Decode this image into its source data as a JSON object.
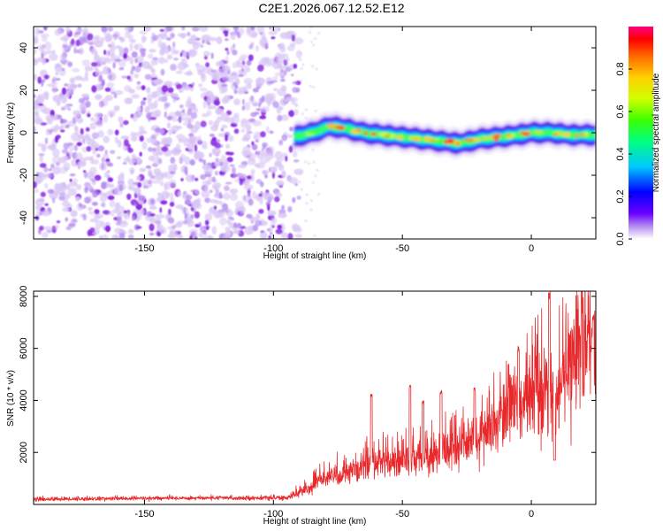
{
  "title": "C2E1.2026.067.12.52.E12",
  "colors": {
    "background": "#ffffff",
    "frame": "#000000",
    "snr_line": "#e8282a",
    "noise_dots": "#8a2be2",
    "noise_halo": "#d9c6f5"
  },
  "chart_data": [
    {
      "type": "heatmap",
      "name": "spectrogram",
      "xlabel": "Height of straight line (km)",
      "ylabel": "Frequency (Hz)",
      "xlim": [
        -193,
        25
      ],
      "ylim": [
        -50,
        50
      ],
      "xticks": [
        -150,
        -100,
        -50,
        0
      ],
      "yticks": [
        -40,
        -20,
        0,
        20,
        40
      ],
      "noise_region_x": [
        -193,
        -90
      ],
      "signal_region_x": [
        -92,
        25
      ],
      "signal_center_track": [
        {
          "x": -92,
          "y": -2
        },
        {
          "x": -85,
          "y": 0
        },
        {
          "x": -78,
          "y": 3
        },
        {
          "x": -72,
          "y": 2
        },
        {
          "x": -65,
          "y": 0
        },
        {
          "x": -58,
          "y": -1
        },
        {
          "x": -50,
          "y": -2
        },
        {
          "x": -42,
          "y": -3
        },
        {
          "x": -35,
          "y": -4
        },
        {
          "x": -28,
          "y": -5
        },
        {
          "x": -20,
          "y": -3
        },
        {
          "x": -12,
          "y": -2
        },
        {
          "x": -5,
          "y": -1
        },
        {
          "x": 0,
          "y": 0
        },
        {
          "x": 8,
          "y": 0
        },
        {
          "x": 15,
          "y": -1
        },
        {
          "x": 24,
          "y": -1
        }
      ],
      "colorbar": {
        "label": "Normalized spectral amplitude",
        "range": [
          0,
          1
        ],
        "ticks": [
          0.0,
          0.2,
          0.4,
          0.6,
          0.8
        ],
        "tick_labels": [
          "0.0",
          "0.2",
          "0.4",
          "0.6",
          "0.8"
        ]
      }
    },
    {
      "type": "line",
      "name": "snr",
      "xlabel": "Height of straight line (km)",
      "ylabel": "SNR (10 * v/v)",
      "xlim": [
        -193,
        25
      ],
      "ylim": [
        0,
        8200
      ],
      "xticks": [
        -150,
        -100,
        -50,
        0
      ],
      "yticks": [
        2000,
        4000,
        6000,
        8000
      ],
      "series": [
        {
          "name": "SNR",
          "trend": [
            {
              "x": -193,
              "y": 200
            },
            {
              "x": -130,
              "y": 250
            },
            {
              "x": -95,
              "y": 250
            },
            {
              "x": -88,
              "y": 550
            },
            {
              "x": -80,
              "y": 1000
            },
            {
              "x": -70,
              "y": 1300
            },
            {
              "x": -60,
              "y": 1600
            },
            {
              "x": -50,
              "y": 1700
            },
            {
              "x": -40,
              "y": 1900
            },
            {
              "x": -30,
              "y": 2100
            },
            {
              "x": -20,
              "y": 2600
            },
            {
              "x": -10,
              "y": 3700
            },
            {
              "x": 0,
              "y": 4200
            },
            {
              "x": 5,
              "y": 4400
            },
            {
              "x": 8,
              "y": 3800
            },
            {
              "x": 12,
              "y": 5000
            },
            {
              "x": 20,
              "y": 6000
            },
            {
              "x": 25,
              "y": 6500
            }
          ],
          "peaks": [
            {
              "x": -62,
              "y": 4300
            },
            {
              "x": -47,
              "y": 4600
            },
            {
              "x": -42,
              "y": 4000
            },
            {
              "x": -35,
              "y": 4400
            },
            {
              "x": -22,
              "y": 4500
            },
            {
              "x": -5,
              "y": 6100
            },
            {
              "x": 7,
              "y": 8200
            },
            {
              "x": 24,
              "y": 7300
            }
          ],
          "dips": [
            {
              "x": 9,
              "y": 1700
            }
          ]
        }
      ]
    }
  ]
}
